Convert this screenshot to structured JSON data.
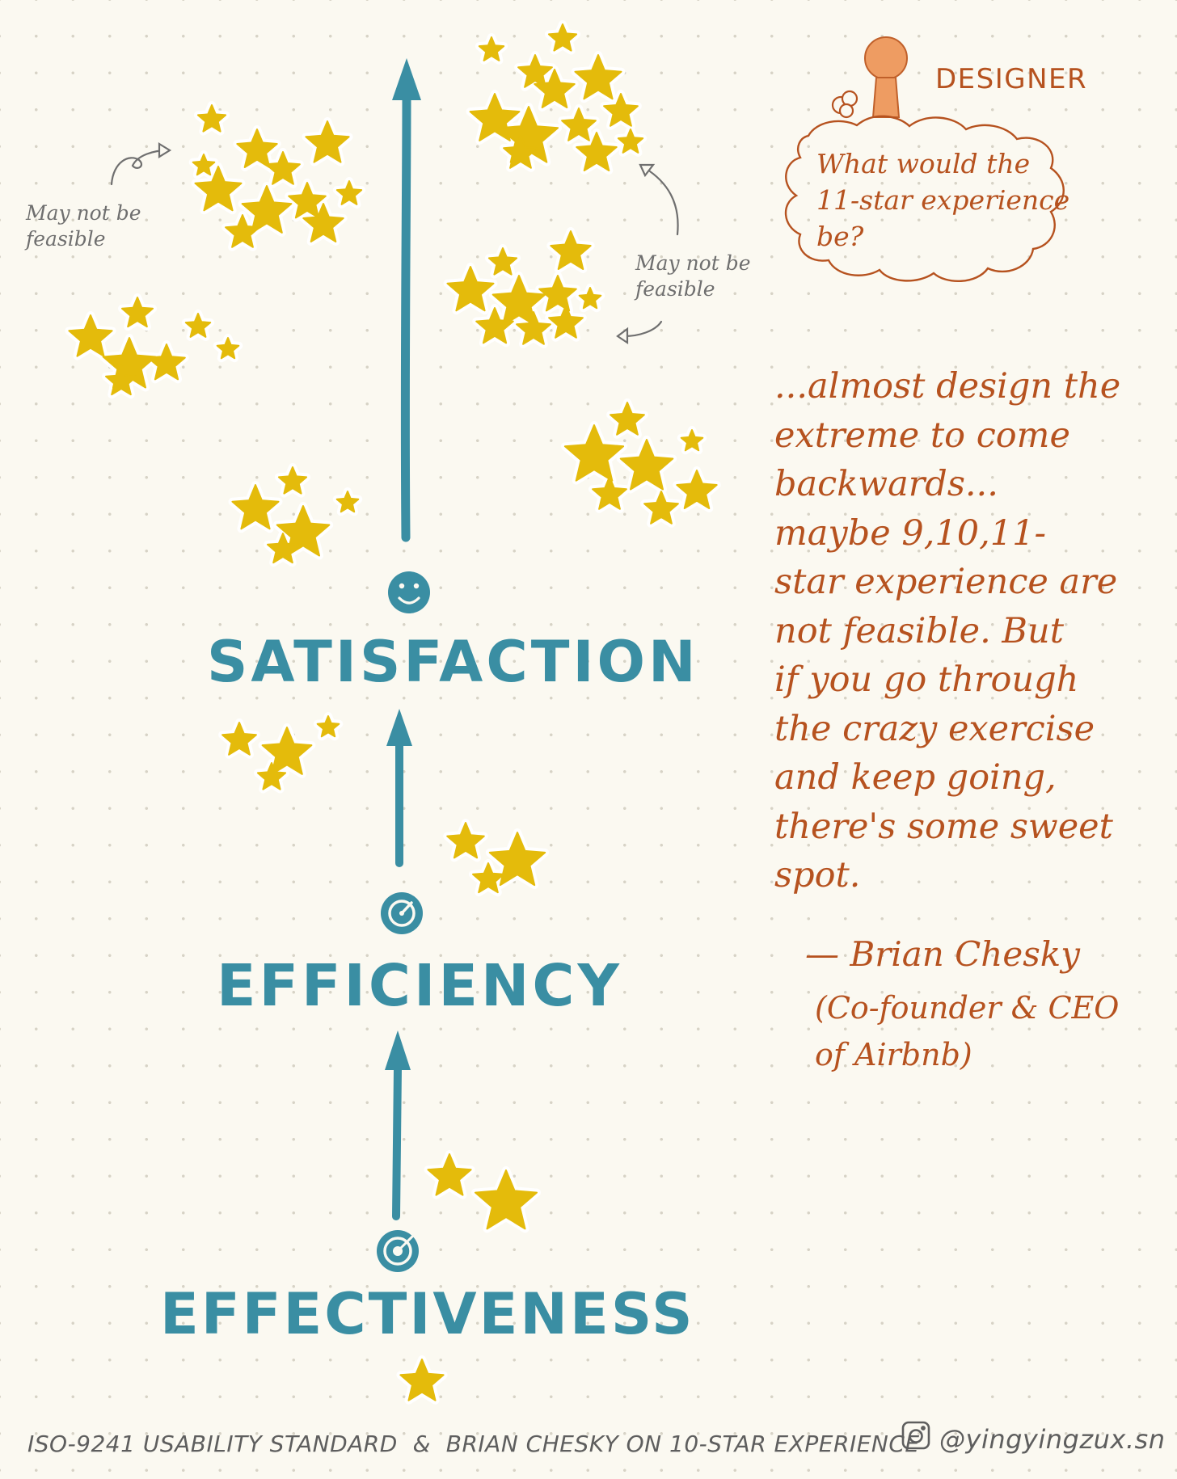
{
  "levels": {
    "satisfaction": "SATISFACTION",
    "efficiency": "EFFICIENCY",
    "effectiveness": "EFFECTIVENESS"
  },
  "notes": {
    "left": "May not be\nfeasible",
    "right": "May not be\nfeasible"
  },
  "designer": {
    "label": "DESIGNER",
    "question": "What would the\n11-star experience\nbe?"
  },
  "quote": {
    "text": "...almost design the\nextreme to come\nbackwards...\nmaybe 9,10,11-\nstar experience are\nnot feasible. But\nif you go through\nthe crazy exercise\nand keep going,\nthere's some sweet\nspot.",
    "author": "— Brian Chesky",
    "role": "(Co-founder & CEO\nof Airbnb)"
  },
  "footer": {
    "title": "ISO-9241 USABILITY STANDARD  &  BRIAN CHESKY ON 10-STAR EXPERIENCE",
    "handle": "@yingyingzux.sn"
  },
  "icons": [
    "smiley-icon",
    "gauge-icon",
    "target-icon",
    "instagram-icon",
    "star-icon",
    "person-icon"
  ],
  "colors": {
    "teal": "#3a8ea3",
    "star": "#e4bb0b",
    "brown": "#b6521f",
    "gray": "#6f6f6f",
    "person": "#ee9c62",
    "background": "#fbf9f1"
  }
}
